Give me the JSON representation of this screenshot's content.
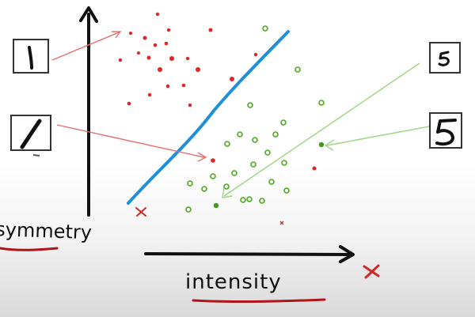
{
  "diagram": {
    "x_axis_label": "intensity",
    "y_axis_label": "symmetry",
    "colors": {
      "ink": "#111111",
      "ones_class": "#e0242a",
      "fives_class": "#4caa1e",
      "separator": "#1f8fd6",
      "arrow_red": "#e46e6e",
      "arrow_green": "#9ed483",
      "underline": "#b0141a",
      "axis_x_mark": "#d02828"
    },
    "digit_icons": [
      {
        "name": "digit-one-upright",
        "digit": "1"
      },
      {
        "name": "digit-one-slanted",
        "digit": "1"
      },
      {
        "name": "digit-five-small",
        "digit": "5"
      },
      {
        "name": "digit-five-large",
        "digit": "5"
      }
    ]
  }
}
